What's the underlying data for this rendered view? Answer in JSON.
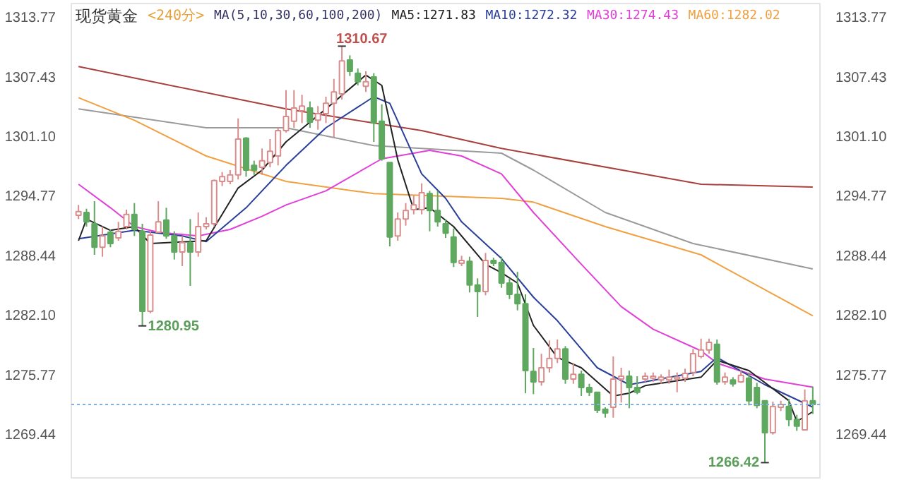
{
  "chart_data": {
    "type": "candlestick",
    "title": "现货黄金",
    "subtitle": "<240分>",
    "annotations": [
      "MA(5,10,30,60,100,200)",
      "1310.67",
      "1280.95",
      "1266.42"
    ],
    "categories": [
      null,
      null,
      null,
      null,
      null,
      null,
      null,
      null,
      null,
      null,
      null,
      null,
      null,
      null,
      null,
      null,
      null,
      null,
      null,
      null,
      null,
      null,
      null,
      null,
      null,
      null,
      null,
      null,
      null,
      null,
      null,
      null,
      null,
      null,
      null,
      null,
      null,
      null,
      null,
      null,
      null,
      null,
      null,
      null,
      null,
      null,
      null,
      null,
      null,
      null,
      null,
      null,
      null,
      null,
      null,
      null,
      null,
      null,
      null,
      null,
      null,
      null,
      null,
      null,
      null,
      null,
      null,
      null,
      null,
      null,
      null,
      null,
      null,
      null,
      null,
      null,
      null,
      null,
      null,
      null,
      null,
      null,
      null,
      null,
      null,
      null,
      null,
      null,
      null,
      null,
      null,
      null,
      null
    ],
    "ohlc": [
      [
        1292.7,
        1293.8,
        1292.3,
        1293.1
      ],
      [
        1293.0,
        1293.4,
        1291.5,
        1292.0
      ],
      [
        1291.8,
        1294.2,
        1288.5,
        1289.3
      ],
      [
        1289.3,
        1291.5,
        1288.3,
        1290.5
      ],
      [
        1290.9,
        1291.2,
        1289.3,
        1289.7
      ],
      [
        1290.3,
        1292.0,
        1290.0,
        1291.0
      ],
      [
        1291.5,
        1293.3,
        1291.2,
        1292.8
      ],
      [
        1292.8,
        1294.0,
        1290.5,
        1291.2
      ],
      [
        1291.0,
        1291.8,
        1280.95,
        1282.5
      ],
      [
        1282.5,
        1291.0,
        1282.3,
        1290.6
      ],
      [
        1290.9,
        1294.2,
        1290.9,
        1292.0
      ],
      [
        1292.2,
        1293.5,
        1290.2,
        1290.5
      ],
      [
        1290.5,
        1291.0,
        1288.0,
        1288.8
      ],
      [
        1288.8,
        1290.5,
        1287.3,
        1289.8
      ],
      [
        1289.8,
        1292.3,
        1285.2,
        1288.8
      ],
      [
        1288.8,
        1293.0,
        1288.3,
        1291.5
      ],
      [
        1291.5,
        1292.5,
        1291.2,
        1291.8
      ],
      [
        1291.8,
        1296.5,
        1291.5,
        1296.4
      ],
      [
        1296.3,
        1297.3,
        1295.8,
        1296.8
      ],
      [
        1296.3,
        1297.5,
        1296.0,
        1297.0
      ],
      [
        1297.0,
        1303.0,
        1296.5,
        1300.8
      ],
      [
        1300.9,
        1301.0,
        1296.8,
        1297.5
      ],
      [
        1298.0,
        1298.5,
        1297.0,
        1297.5
      ],
      [
        1297.8,
        1299.8,
        1297.0,
        1298.5
      ],
      [
        1298.3,
        1300.8,
        1297.8,
        1299.5
      ],
      [
        1299.0,
        1302.0,
        1298.0,
        1301.7
      ],
      [
        1301.7,
        1306.0,
        1301.5,
        1303.2
      ],
      [
        1302.7,
        1306.0,
        1302.0,
        1304.1
      ],
      [
        1303.8,
        1305.5,
        1302.5,
        1304.3
      ],
      [
        1304.1,
        1304.8,
        1302.0,
        1302.6
      ],
      [
        1302.8,
        1304.3,
        1301.8,
        1303.5
      ],
      [
        1303.5,
        1305.3,
        1302.5,
        1304.6
      ],
      [
        1304.6,
        1307.2,
        1301.0,
        1305.8
      ],
      [
        1305.6,
        1310.67,
        1305.0,
        1309.1
      ],
      [
        1309.2,
        1309.7,
        1307.5,
        1308.0
      ],
      [
        1307.8,
        1308.3,
        1306.5,
        1306.9
      ],
      [
        1306.4,
        1308.0,
        1305.8,
        1306.9
      ],
      [
        1307.4,
        1307.8,
        1300.5,
        1302.5
      ],
      [
        1302.7,
        1304.5,
        1298.5,
        1298.7
      ],
      [
        1298.3,
        1298.3,
        1289.4,
        1290.4
      ],
      [
        1290.5,
        1293.0,
        1290.0,
        1292.3
      ],
      [
        1292.3,
        1294.0,
        1291.6,
        1293.2
      ],
      [
        1293.3,
        1294.8,
        1292.8,
        1293.8
      ],
      [
        1293.3,
        1296.1,
        1292.8,
        1295.1
      ],
      [
        1295.0,
        1295.3,
        1291.0,
        1293.2
      ],
      [
        1293.2,
        1295.3,
        1291.5,
        1292.0
      ],
      [
        1291.8,
        1292.3,
        1290.3,
        1290.8
      ],
      [
        1290.4,
        1291.3,
        1287.2,
        1287.7
      ],
      [
        1287.6,
        1288.4,
        1287.3,
        1287.9
      ],
      [
        1287.8,
        1288.3,
        1284.5,
        1285.3
      ],
      [
        1285.3,
        1286.0,
        1281.9,
        1284.6
      ],
      [
        1284.6,
        1288.7,
        1284.2,
        1287.9
      ],
      [
        1287.9,
        1288.2,
        1287.3,
        1287.6
      ],
      [
        1287.7,
        1288.3,
        1285.0,
        1285.5
      ],
      [
        1285.5,
        1286.0,
        1283.8,
        1284.3
      ],
      [
        1284.3,
        1286.7,
        1282.6,
        1283.3
      ],
      [
        1283.3,
        1284.3,
        1273.8,
        1276.2
      ],
      [
        1276.1,
        1278.6,
        1273.7,
        1275.0
      ],
      [
        1275.0,
        1278.0,
        1274.6,
        1276.5
      ],
      [
        1276.5,
        1279.4,
        1276.0,
        1277.5
      ],
      [
        1277.5,
        1279.5,
        1277.0,
        1278.5
      ],
      [
        1278.5,
        1278.8,
        1274.8,
        1275.3
      ],
      [
        1275.3,
        1277.0,
        1274.8,
        1275.8
      ],
      [
        1275.8,
        1276.2,
        1273.5,
        1274.4
      ],
      [
        1274.4,
        1274.8,
        1273.5,
        1273.9
      ],
      [
        1273.9,
        1273.9,
        1271.7,
        1272.0
      ],
      [
        1272.1,
        1272.3,
        1271.2,
        1271.7
      ],
      [
        1272.3,
        1277.7,
        1271.2,
        1275.3
      ],
      [
        1275.3,
        1276.5,
        1272.8,
        1275.6
      ],
      [
        1275.6,
        1276.2,
        1272.2,
        1274.4
      ],
      [
        1274.4,
        1275.6,
        1273.7,
        1273.9
      ],
      [
        1275.3,
        1276.0,
        1275.0,
        1275.6
      ],
      [
        1275.4,
        1276.0,
        1275.0,
        1275.6
      ],
      [
        1275.2,
        1275.8,
        1274.8,
        1275.5
      ],
      [
        1275.2,
        1276.3,
        1274.8,
        1275.5
      ],
      [
        1275.3,
        1276.0,
        1273.9,
        1275.5
      ],
      [
        1275.4,
        1276.4,
        1275.0,
        1275.9
      ],
      [
        1276.0,
        1278.5,
        1275.6,
        1278.0
      ],
      [
        1277.7,
        1279.6,
        1277.5,
        1278.4
      ],
      [
        1278.4,
        1279.6,
        1278.0,
        1279.2
      ],
      [
        1279.0,
        1279.5,
        1274.7,
        1275.0
      ],
      [
        1275.0,
        1276.0,
        1274.7,
        1275.5
      ],
      [
        1275.2,
        1275.5,
        1274.5,
        1274.8
      ],
      [
        1275.0,
        1276.3,
        1274.9,
        1275.7
      ],
      [
        1275.4,
        1276.0,
        1272.5,
        1273.0
      ],
      [
        1274.4,
        1274.9,
        1272.2,
        1272.5
      ],
      [
        1273.0,
        1273.0,
        1266.42,
        1269.6
      ],
      [
        1269.6,
        1272.9,
        1269.4,
        1272.4
      ],
      [
        1272.3,
        1273.0,
        1271.9,
        1272.6
      ],
      [
        1272.4,
        1273.2,
        1270.3,
        1271.0
      ],
      [
        1271.0,
        1271.5,
        1269.8,
        1270.3
      ],
      [
        1269.9,
        1274.2,
        1269.9,
        1273.0
      ],
      [
        1273.0,
        1274.5,
        1271.6,
        1272.6
      ]
    ],
    "colors": [
      "#d98c8c",
      "#5fa85f",
      "#5fa85f",
      "#d98c8c",
      "#5fa85f",
      "#d98c8c",
      "#d98c8c",
      "#5fa85f",
      "#5fa85f",
      "#d98c8c",
      "#d98c8c",
      "#5fa85f",
      "#5fa85f",
      "#d98c8c",
      "#5fa85f",
      "#d98c8c",
      "#d98c8c",
      "#d98c8c",
      "#d98c8c",
      "#d98c8c",
      "#d98c8c",
      "#5fa85f",
      "#5fa85f",
      "#d98c8c",
      "#d98c8c",
      "#d98c8c",
      "#d98c8c",
      "#d98c8c",
      "#d98c8c",
      "#5fa85f",
      "#d98c8c",
      "#d98c8c",
      "#d98c8c",
      "#d98c8c",
      "#5fa85f",
      "#5fa85f",
      "#d98c8c",
      "#5fa85f",
      "#5fa85f",
      "#5fa85f",
      "#d98c8c",
      "#d98c8c",
      "#d98c8c",
      "#d98c8c",
      "#5fa85f",
      "#5fa85f",
      "#5fa85f",
      "#5fa85f",
      "#d98c8c",
      "#5fa85f",
      "#5fa85f",
      "#d98c8c",
      "#5fa85f",
      "#5fa85f",
      "#5fa85f",
      "#5fa85f",
      "#5fa85f",
      "#5fa85f",
      "#d98c8c",
      "#d98c8c",
      "#d98c8c",
      "#5fa85f",
      "#d98c8c",
      "#5fa85f",
      "#5fa85f",
      "#5fa85f",
      "#5fa85f",
      "#d98c8c",
      "#d98c8c",
      "#5fa85f",
      "#5fa85f",
      "#d98c8c",
      "#d98c8c",
      "#d98c8c",
      "#d98c8c",
      "#d98c8c",
      "#d98c8c",
      "#d98c8c",
      "#d98c8c",
      "#d98c8c",
      "#5fa85f",
      "#d98c8c",
      "#5fa85f",
      "#d98c8c",
      "#5fa85f",
      "#5fa85f",
      "#5fa85f",
      "#d98c8c",
      "#d98c8c",
      "#5fa85f",
      "#5fa85f",
      "#d98c8c",
      "#5fa85f"
    ],
    "series": [
      {
        "type": "line",
        "color": "#a8403c",
        "values": [
          1308.5,
          null,
          null,
          null,
          null,
          null,
          null,
          null,
          null,
          null,
          null,
          null,
          null,
          null,
          null,
          null,
          null,
          null,
          null,
          null,
          null,
          null,
          null,
          null,
          null,
          null,
          1304.0,
          null,
          null,
          null,
          null,
          null,
          null,
          null,
          null,
          null,
          null,
          1302.5,
          null,
          null,
          null,
          null,
          null,
          1301.7,
          null,
          null,
          null,
          null,
          null,
          null,
          null,
          null,
          null,
          1299.8,
          null,
          null,
          null,
          null,
          null,
          null,
          null,
          null,
          null,
          null,
          null,
          null,
          null,
          null,
          null,
          null,
          null,
          null,
          null,
          null,
          null,
          null,
          null,
          null,
          1296.0,
          null,
          null,
          null,
          null,
          null,
          null,
          null,
          null,
          null,
          null,
          null,
          null,
          null,
          1295.7
        ]
      },
      {
        "type": "line",
        "color": "#9a9a9a",
        "values": [
          1304.0,
          null,
          null,
          null,
          null,
          null,
          null,
          null,
          null,
          null,
          null,
          null,
          null,
          null,
          null,
          null,
          1302.0,
          null,
          null,
          null,
          null,
          null,
          null,
          null,
          null,
          null,
          1302.0,
          null,
          null,
          null,
          null,
          null,
          null,
          null,
          null,
          null,
          null,
          1300.1,
          null,
          null,
          null,
          null,
          null,
          null,
          null,
          null,
          null,
          null,
          null,
          null,
          null,
          null,
          null,
          1299.3,
          null,
          null,
          null,
          1297.5,
          null,
          null,
          null,
          null,
          null,
          null,
          null,
          null,
          1293.0,
          null,
          null,
          null,
          null,
          null,
          null,
          null,
          null,
          null,
          null,
          1289.7,
          null,
          null,
          null,
          null,
          null,
          null,
          null,
          null,
          null,
          null,
          null,
          null,
          null,
          null,
          1287.0
        ]
      },
      {
        "name": "MA60:1282.02",
        "type": "line",
        "color": "#f0a040",
        "values": [
          1305.2,
          null,
          null,
          null,
          null,
          null,
          null,
          1302.8,
          null,
          null,
          null,
          null,
          null,
          null,
          null,
          null,
          1299.0,
          null,
          null,
          null,
          null,
          null,
          null,
          null,
          null,
          null,
          1296.3,
          null,
          null,
          null,
          null,
          null,
          null,
          null,
          null,
          null,
          null,
          1295.0,
          null,
          null,
          null,
          null,
          null,
          null,
          null,
          null,
          null,
          null,
          null,
          null,
          null,
          null,
          null,
          1294.5,
          null,
          null,
          null,
          1294.1,
          null,
          null,
          null,
          null,
          null,
          null,
          null,
          null,
          1291.5,
          null,
          null,
          null,
          null,
          null,
          null,
          null,
          null,
          null,
          null,
          null,
          1288.5,
          null,
          null,
          null,
          null,
          null,
          null,
          null,
          null,
          null,
          null,
          null,
          null,
          null,
          1282.02
        ]
      },
      {
        "name": "MA30:1274.43",
        "type": "line",
        "color": "#e040d8",
        "values": [
          1296.0,
          null,
          null,
          null,
          1293.5,
          null,
          null,
          1291.5,
          null,
          null,
          1290.9,
          null,
          null,
          null,
          null,
          1290.5,
          null,
          null,
          null,
          1291.2,
          null,
          null,
          null,
          1292.6,
          null,
          null,
          1293.8,
          null,
          null,
          null,
          null,
          1295.3,
          null,
          null,
          null,
          null,
          null,
          null,
          1298.7,
          null,
          null,
          null,
          null,
          null,
          1299.6,
          null,
          null,
          null,
          1299.0,
          null,
          null,
          null,
          null,
          1297.1,
          null,
          null,
          null,
          1293.0,
          null,
          null,
          null,
          null,
          null,
          1287.5,
          null,
          null,
          null,
          null,
          1283.0,
          null,
          null,
          null,
          1280.6,
          null,
          null,
          null,
          null,
          null,
          1278.3,
          null,
          1277.0,
          null,
          null,
          null,
          null,
          null,
          1275.3,
          null,
          null,
          null,
          null,
          null,
          1274.43
        ]
      },
      {
        "name": "MA10:1272.32",
        "type": "line",
        "color": "#2a3f9a",
        "values": [
          1290.2,
          null,
          null,
          null,
          null,
          null,
          null,
          1291.1,
          null,
          null,
          null,
          null,
          null,
          1290.5,
          null,
          null,
          1289.9,
          null,
          null,
          null,
          null,
          1293.5,
          null,
          null,
          null,
          null,
          1298.0,
          null,
          null,
          null,
          null,
          1302.0,
          null,
          null,
          null,
          null,
          null,
          1305.3,
          null,
          1304.6,
          null,
          null,
          null,
          1297.1,
          null,
          null,
          1294.5,
          null,
          1292.0,
          null,
          null,
          null,
          null,
          1288.1,
          null,
          null,
          null,
          1284.0,
          null,
          null,
          1281.5,
          null,
          null,
          null,
          null,
          1276.5,
          null,
          null,
          null,
          1274.7,
          null,
          null,
          null,
          null,
          null,
          null,
          null,
          null,
          1276.1,
          null,
          1277.6,
          null,
          null,
          null,
          null,
          null,
          1274.7,
          null,
          null,
          null,
          null,
          null,
          1272.32
        ]
      },
      {
        "name": "MA5:1271.83",
        "type": "line",
        "color": "#222222",
        "values": [
          1290.0,
          1292.3,
          null,
          null,
          1291.1,
          null,
          null,
          1291.5,
          null,
          1289.7,
          null,
          null,
          null,
          null,
          null,
          null,
          1290.0,
          null,
          null,
          null,
          1295.6,
          null,
          null,
          1297.5,
          null,
          null,
          1300.5,
          null,
          null,
          null,
          null,
          1304.0,
          null,
          null,
          null,
          null,
          1307.6,
          null,
          1306.5,
          null,
          1298.6,
          null,
          1293.3,
          null,
          1293.5,
          null,
          null,
          1291.5,
          null,
          null,
          null,
          1287.5,
          null,
          1286.6,
          null,
          1285.5,
          null,
          1281.0,
          null,
          null,
          1277.6,
          null,
          null,
          1276.5,
          null,
          null,
          null,
          1273.5,
          null,
          1273.8,
          null,
          1274.6,
          null,
          null,
          null,
          null,
          null,
          null,
          1275.5,
          null,
          1277.3,
          null,
          null,
          null,
          1276.2,
          null,
          null,
          null,
          null,
          1273.0,
          1270.8,
          null,
          1271.83
        ]
      }
    ],
    "ylim": [
      1264.8,
      1315.2
    ],
    "yticks": [
      1269.44,
      1275.77,
      {
        "value": 1282.1,
        "label": "1282.10"
      },
      1288.44,
      1294.77,
      {
        "value": 1301.1,
        "label": "1301.10"
      },
      1307.43,
      1313.77
    ],
    "y2lim": [
      1264.8,
      1315.2
    ],
    "y2ticks": [
      1269.44,
      1275.77,
      {
        "value": 1282.1,
        "label": "1282.10"
      },
      1288.44,
      1294.77,
      {
        "value": 1301.1,
        "label": "1301.10"
      },
      1307.43,
      1313.77
    ],
    "ref_lines": [
      {
        "axis": "y",
        "value": 1272.6,
        "color": "#7fb0e0",
        "line_style": "dotted"
      }
    ],
    "tick_labels": "y",
    "legend": "top"
  }
}
